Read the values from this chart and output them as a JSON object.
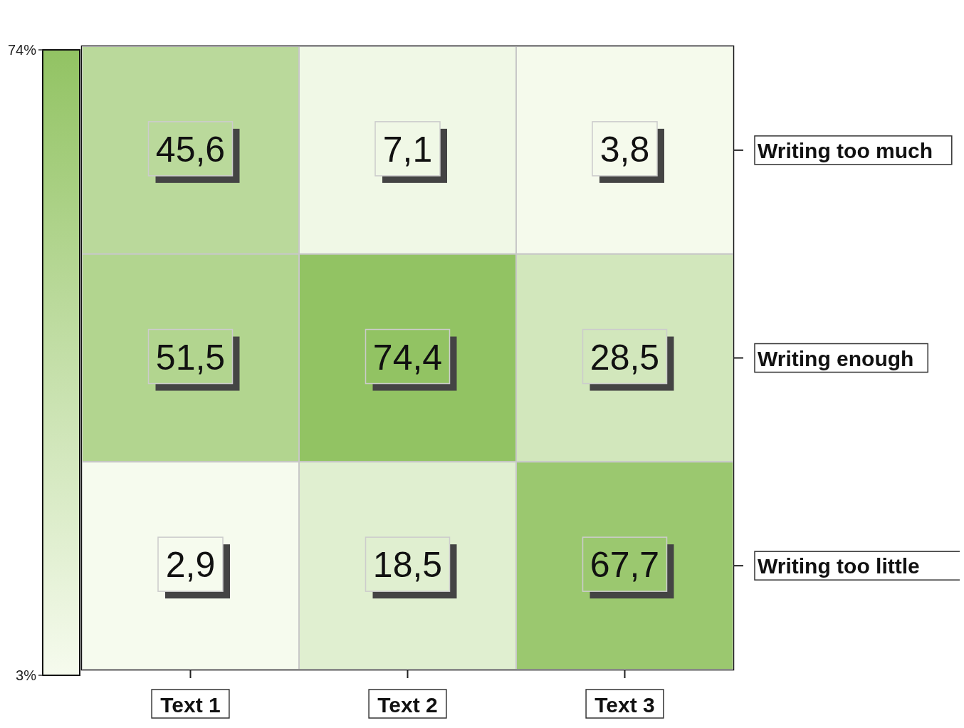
{
  "chart_data": {
    "type": "heatmap",
    "categories": [
      "Text 1",
      "Text 2",
      "Text 3"
    ],
    "y_categories": [
      "Writing too much",
      "Writing enough",
      "Writing too little"
    ],
    "cells": [
      [
        45.6,
        7.1,
        3.8
      ],
      [
        51.5,
        74.4,
        28.5
      ],
      [
        2.9,
        18.5,
        67.7
      ]
    ],
    "cell_labels": [
      [
        "45,6",
        "7,1",
        "3,8"
      ],
      [
        "51,5",
        "74,4",
        "28,5"
      ],
      [
        "2,9",
        "18,5",
        "67,7"
      ]
    ],
    "clim": [
      3,
      74
    ],
    "cticks": [
      {
        "value": 3,
        "label": "3%"
      },
      {
        "value": 74,
        "label": "74%"
      }
    ]
  }
}
